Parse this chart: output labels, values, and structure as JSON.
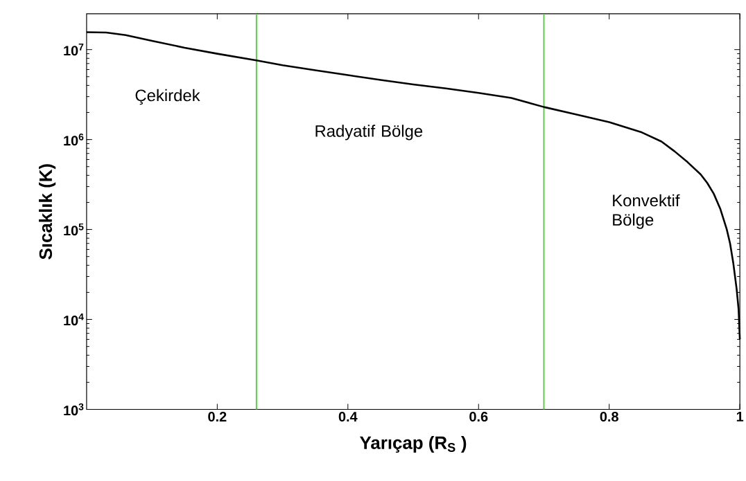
{
  "chart_data": {
    "type": "line",
    "xlabel": "Yarıçap (R$_{S}$ )",
    "ylabel": "Sıcaklık (K)",
    "log": "y",
    "xlim": [
      0,
      1
    ],
    "ylim": [
      1000,
      25000000
    ],
    "xticks": [
      0.2,
      0.4,
      0.6,
      0.8,
      1
    ],
    "yticks": [
      {
        "value": 1000,
        "label": "10$^{3}$"
      },
      {
        "value": 10000,
        "label": "10$^{4}$"
      },
      {
        "value": 100000,
        "label": "10$^{5}$"
      },
      {
        "value": 1000000,
        "label": "10$^{6}$"
      },
      {
        "value": 10000000,
        "label": "10$^{7}$"
      }
    ],
    "series": [
      {
        "color": "#000000",
        "x": [
          0,
          0.03,
          0.06,
          0.1,
          0.15,
          0.2,
          0.26,
          0.3,
          0.35,
          0.4,
          0.45,
          0.5,
          0.55,
          0.6,
          0.65,
          0.7,
          0.75,
          0.8,
          0.85,
          0.88,
          0.9,
          0.92,
          0.94,
          0.95,
          0.96,
          0.97,
          0.98,
          0.985,
          0.99,
          0.995,
          0.998,
          1.0
        ],
        "values": [
          15600000,
          15500000,
          14500000,
          12500000,
          10500000,
          9000000,
          7600000,
          6700000,
          5900000,
          5200000,
          4600000,
          4100000,
          3700000,
          3300000,
          2900000,
          2300000,
          1900000,
          1560000,
          1200000,
          950000,
          740000,
          560000,
          410000,
          330000,
          250000,
          170000,
          100000,
          70000,
          42000,
          22000,
          13000,
          6000
        ]
      }
    ],
    "ref_lines": [
      {
        "axis": "x",
        "value": 0.26,
        "color": "#5ccf4a"
      },
      {
        "axis": "x",
        "value": 0.7,
        "color": "#5ccf4a"
      }
    ],
    "annotations": [
      "Çekirdek",
      "Radyatif Bölge",
      "Konvektif Bölge"
    ]
  }
}
